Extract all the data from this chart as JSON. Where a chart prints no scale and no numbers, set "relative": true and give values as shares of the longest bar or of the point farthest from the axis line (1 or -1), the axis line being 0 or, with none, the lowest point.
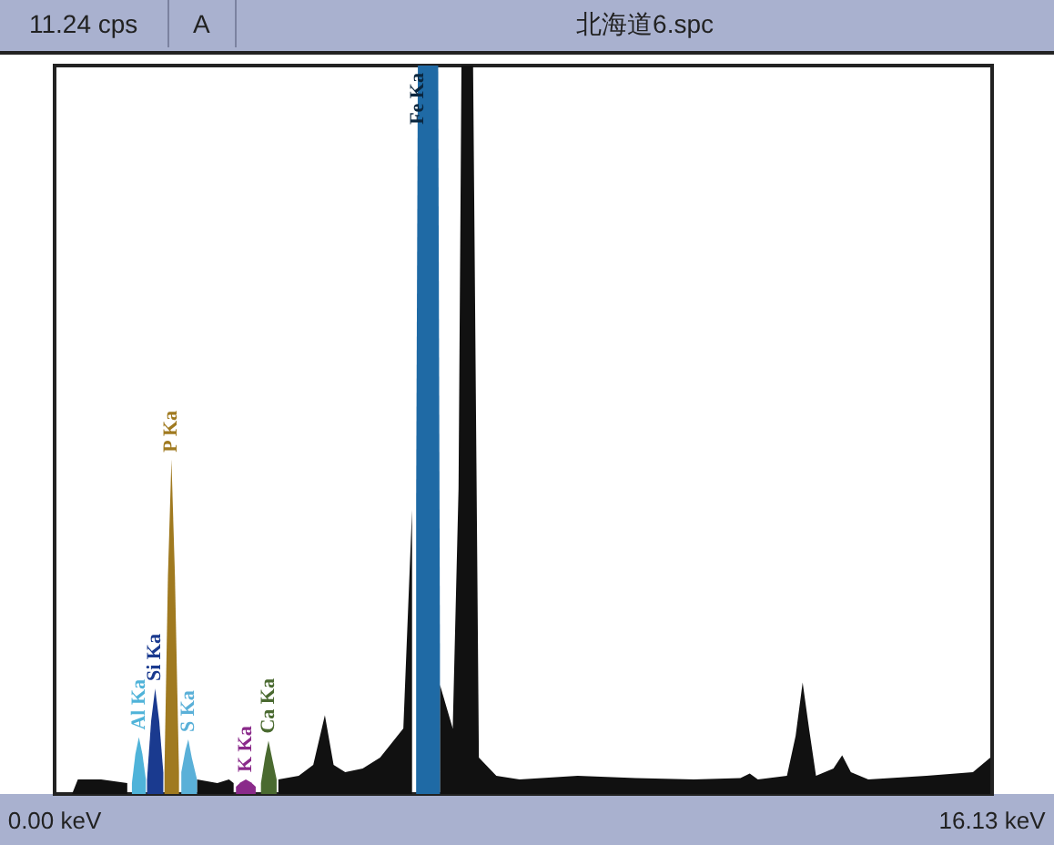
{
  "chart_data": {
    "type": "area",
    "title": "北海道6.spc",
    "annotations": [
      "11.24 cps",
      "A"
    ],
    "relative": true,
    "xlim": [
      0,
      16.13
    ],
    "xticks": [
      {
        "value": 0,
        "label": "0.00 keV"
      },
      {
        "value": 16.13,
        "label": "16.13 keV"
      }
    ],
    "legend": false,
    "grid": false,
    "marker": "none",
    "series": [
      {
        "color": "#111111",
        "x": [
          0.3,
          0.4,
          0.8,
          1.25,
          1.3,
          2.45,
          2.8,
          3.0,
          3.08,
          3.12,
          3.85,
          4.2,
          4.45,
          4.65,
          4.8,
          5.0,
          5.3,
          5.6,
          5.8,
          6.0,
          6.15,
          6.22,
          6.63,
          6.85,
          6.95,
          7.0,
          7.2,
          7.3,
          7.6,
          8.0,
          9.0,
          10.0,
          11.0,
          11.8,
          11.96,
          12.1,
          12.6,
          12.75,
          12.87,
          12.98,
          13.1,
          13.4,
          13.55,
          13.7,
          14.0,
          15.0,
          15.8,
          16.1
        ],
        "values": [
          0,
          0.02,
          0.02,
          0.015,
          null,
          0.02,
          0.015,
          0.02,
          0.015,
          null,
          0.02,
          0.025,
          0.04,
          0.108,
          0.04,
          0.03,
          0.035,
          0.05,
          0.07,
          0.09,
          0.39,
          null,
          0.15,
          0.09,
          0.42,
          1,
          1,
          0.05,
          0.025,
          0.02,
          0.025,
          0.022,
          0.02,
          0.022,
          0.028,
          0.02,
          0.025,
          0.08,
          0.153,
          0.09,
          0.025,
          0.035,
          0.053,
          0.03,
          0.02,
          0.025,
          0.03,
          0.05
        ]
      },
      {
        "name": "Al Ka",
        "color": "#4fb3d9",
        "x": [
          1.33,
          1.39,
          1.45,
          1.51,
          1.57
        ],
        "values": [
          0.015,
          0.055,
          0.078,
          0.055,
          0.02
        ]
      },
      {
        "name": "Si Ka",
        "color": "#1a3a8f",
        "x": [
          1.59,
          1.66,
          1.73,
          1.8,
          1.87
        ],
        "values": [
          0.02,
          0.1,
          0.145,
          0.1,
          0.03
        ]
      },
      {
        "name": "P Ka",
        "color": "#a07a20",
        "x": [
          1.89,
          1.95,
          2.01,
          2.07,
          2.14
        ],
        "values": [
          0.03,
          0.3,
          0.459,
          0.3,
          0.03
        ]
      },
      {
        "name": "S Ka",
        "color": "#5ab0d8",
        "x": [
          2.18,
          2.25,
          2.3,
          2.36,
          2.45
        ],
        "values": [
          0.03,
          0.06,
          0.075,
          0.05,
          0.02
        ]
      },
      {
        "name": "K Ka",
        "color": "#8a2a8a",
        "x": [
          3.12,
          3.2,
          3.29,
          3.38,
          3.46
        ],
        "values": [
          0.01,
          0.016,
          0.02,
          0.016,
          0.01
        ]
      },
      {
        "name": "Ca Ka",
        "color": "#4a6a30",
        "x": [
          3.55,
          3.62,
          3.68,
          3.74,
          3.82
        ],
        "values": [
          0.015,
          0.05,
          0.073,
          0.05,
          0.02
        ]
      },
      {
        "name": "Fe Ka",
        "color": "#1f6aa5",
        "x": [
          6.22,
          6.25,
          6.6,
          6.63
        ],
        "values": [
          0.4,
          1,
          1,
          0.2
        ]
      }
    ]
  }
}
